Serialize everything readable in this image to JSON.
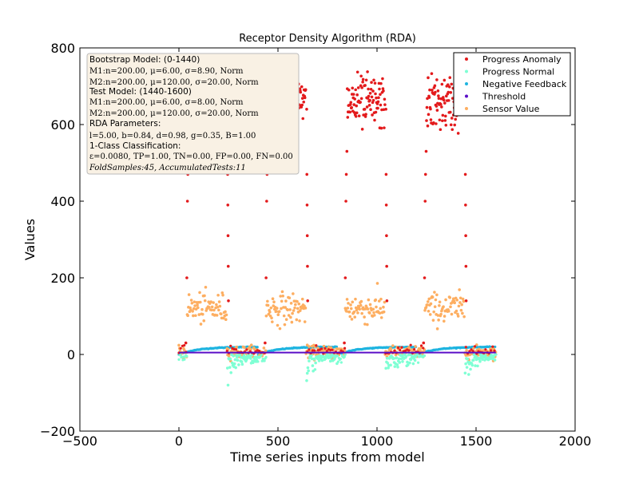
{
  "chart_data": {
    "type": "scatter",
    "title": "Receptor Density Algorithm (RDA)",
    "xlabel": "Time series inputs from model",
    "ylabel": "Values",
    "xlim": [
      -500,
      2000
    ],
    "ylim": [
      -200,
      800
    ],
    "xticks": [
      -500,
      0,
      500,
      1000,
      1500,
      2000
    ],
    "yticks": [
      -200,
      0,
      200,
      400,
      600,
      800
    ],
    "grid": false,
    "legend_position": "top-right",
    "cycle_starts": [
      0,
      400,
      800,
      1200
    ],
    "series": [
      {
        "name": "Progress Anomaly",
        "color": "#e31a1c",
        "shape": "dot",
        "description": "Spikes to ~600-750 during M2 segments, small values near 0-30 otherwise",
        "high_segments": [
          [
            40,
            240
          ],
          [
            440,
            640
          ],
          [
            840,
            1040
          ],
          [
            1240,
            1440
          ]
        ],
        "high_range": [
          560,
          750
        ]
      },
      {
        "name": "Progress Normal",
        "color": "#7fffd4",
        "shape": "dot",
        "description": "Small negative values near 0 to -80 after each segment",
        "range": [
          -80,
          0
        ]
      },
      {
        "name": "Negative Feedback",
        "color": "#1fb4e0",
        "shape": "dot",
        "description": "Slowly rising curve from 0 to ~20 per cycle",
        "range": [
          0,
          20
        ]
      },
      {
        "name": "Threshold",
        "color": "#5b0fc7",
        "shape": "line",
        "value": 5
      },
      {
        "name": "Sensor Value",
        "color": "#fdae61",
        "shape": "dot",
        "description": "~120 during M2 segments, ~6 otherwise",
        "high_segments": [
          [
            40,
            240
          ],
          [
            440,
            640
          ],
          [
            840,
            1040
          ],
          [
            1240,
            1440
          ]
        ],
        "high_mean": 120,
        "high_sd": 20,
        "low_mean": 6,
        "low_sd": 8
      }
    ]
  },
  "info_box": {
    "lines": [
      {
        "text": "Bootstrap Model: (0-1440)",
        "style": "sans"
      },
      {
        "text": "M1:n=200.00, μ=6.00, σ=8.90, Norm",
        "style": "serif"
      },
      {
        "text": "M2:n=200.00, μ=120.00, σ=20.00, Norm",
        "style": "serif"
      },
      {
        "text": "Test Model: (1440-1600)",
        "style": "sans"
      },
      {
        "text": "M1:n=200.00, μ=6.00, σ=8.00, Norm",
        "style": "serif"
      },
      {
        "text": "M2:n=200.00, μ=120.00, σ=20.00, Norm",
        "style": "serif"
      },
      {
        "text": "RDA Parameters:",
        "style": "sans"
      },
      {
        "text": "l=5.00, b=0.84, d=0.98, g=0.35, B=1.00",
        "style": "serif"
      },
      {
        "text": "1-Class Classification:",
        "style": "sans"
      },
      {
        "text": "ε=0.0080, TP=1.00, TN=0.00, FP=0.00, FN=0.00",
        "style": "serif"
      },
      {
        "text": "FoldSamples:45, AccumulatedTests:11",
        "style": "serif-italic"
      }
    ]
  }
}
